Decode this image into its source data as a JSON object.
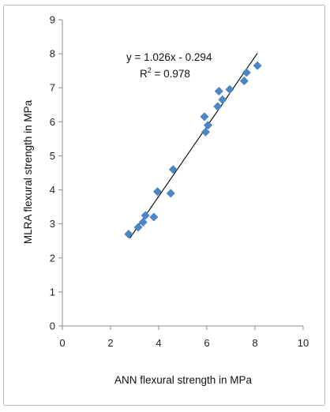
{
  "chart_data": {
    "type": "scatter",
    "title": "",
    "xlabel": "ANN flexural strength in MPa",
    "ylabel": "MLRA flexural strength in MPa",
    "xlim": [
      0,
      10
    ],
    "ylim": [
      0,
      9
    ],
    "x_ticks": [
      "0",
      "2",
      "4",
      "6",
      "8",
      "10"
    ],
    "y_ticks": [
      "0",
      "1",
      "2",
      "3",
      "4",
      "5",
      "6",
      "7",
      "8",
      "9"
    ],
    "grid": false,
    "legend": "none",
    "marker": "diamond",
    "marker_color": "#4a86c8",
    "trendline": {
      "slope": 1.026,
      "intercept": -0.294,
      "x_range": [
        2.8,
        8.1
      ],
      "color": "#000000",
      "equation_label": "y = 1.026x - 0.294",
      "r2_prefix": "R",
      "r2_suffix": " = 0.978"
    },
    "points": [
      {
        "x": 2.75,
        "y": 2.7
      },
      {
        "x": 3.15,
        "y": 2.9
      },
      {
        "x": 3.35,
        "y": 3.05
      },
      {
        "x": 3.45,
        "y": 3.25
      },
      {
        "x": 3.8,
        "y": 3.2
      },
      {
        "x": 3.95,
        "y": 3.95
      },
      {
        "x": 4.5,
        "y": 3.9
      },
      {
        "x": 4.6,
        "y": 4.6
      },
      {
        "x": 5.9,
        "y": 6.15
      },
      {
        "x": 5.95,
        "y": 5.7
      },
      {
        "x": 6.05,
        "y": 5.9
      },
      {
        "x": 6.45,
        "y": 6.45
      },
      {
        "x": 6.5,
        "y": 6.9
      },
      {
        "x": 6.65,
        "y": 6.65
      },
      {
        "x": 6.95,
        "y": 6.95
      },
      {
        "x": 7.55,
        "y": 7.2
      },
      {
        "x": 7.65,
        "y": 7.45
      },
      {
        "x": 8.1,
        "y": 7.65
      }
    ]
  }
}
